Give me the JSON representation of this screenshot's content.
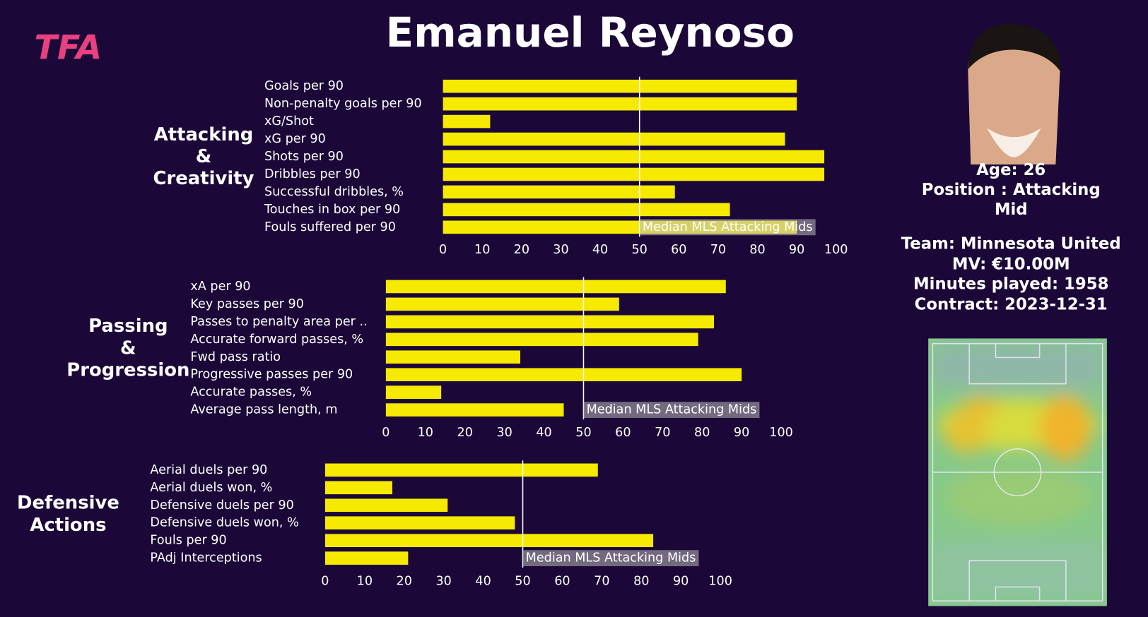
{
  "logo": "TFA",
  "title": "Emanuel Reynoso",
  "player": {
    "age": "Age: 26",
    "position": "Position : Attacking Mid",
    "team": "Team: Minnesota United",
    "mv": "MV: €10.00M",
    "minutes": "Minutes played: 1958",
    "contract": "Contract: 2023-12-31"
  },
  "chart_data": [
    {
      "type": "bar",
      "title": "Attacking & Creativity",
      "color": "#f5ea00",
      "categories": [
        "Goals per 90",
        "Non-penalty goals per 90",
        "xG/Shot",
        "xG per 90",
        "Shots per 90",
        "Dribbles per 90",
        "Successful dribbles, %",
        "Touches in box per 90",
        "Fouls suffered per 90"
      ],
      "values": [
        90,
        90,
        12,
        87,
        97,
        97,
        59,
        73,
        90
      ],
      "xlim": [
        0,
        100
      ],
      "xticks": [
        0,
        10,
        20,
        30,
        40,
        50,
        60,
        70,
        80,
        90,
        100
      ],
      "reference_line": {
        "value": 50,
        "label": "Median MLS Attacking Mids"
      }
    },
    {
      "type": "bar",
      "title": "Passing & Progression",
      "color": "#f5ea00",
      "categories": [
        "xA per 90",
        "Key passes per 90",
        "Passes to penalty area per ..",
        "Accurate forward passes, %",
        "Fwd pass ratio",
        "Progressive passes per 90",
        "Accurate passes, %",
        "Average pass length, m"
      ],
      "values": [
        86,
        59,
        83,
        79,
        34,
        90,
        14,
        45
      ],
      "xlim": [
        0,
        100
      ],
      "xticks": [
        0,
        10,
        20,
        30,
        40,
        50,
        60,
        70,
        80,
        90,
        100
      ],
      "reference_line": {
        "value": 50,
        "label": "Median MLS Attacking Mids"
      }
    },
    {
      "type": "bar",
      "title": "Defensive Actions",
      "color": "#f5ea00",
      "categories": [
        "Aerial duels per 90",
        "Aerial duels won, %",
        "Defensive duels per 90",
        "Defensive duels won, %",
        "Fouls per 90",
        "PAdj Interceptions"
      ],
      "values": [
        69,
        17,
        31,
        48,
        83,
        21
      ],
      "xlim": [
        0,
        100
      ],
      "xticks": [
        0,
        10,
        20,
        30,
        40,
        50,
        60,
        70,
        80,
        90,
        100
      ],
      "reference_line": {
        "value": 50,
        "label": "Median MLS Attacking Mids"
      }
    }
  ]
}
